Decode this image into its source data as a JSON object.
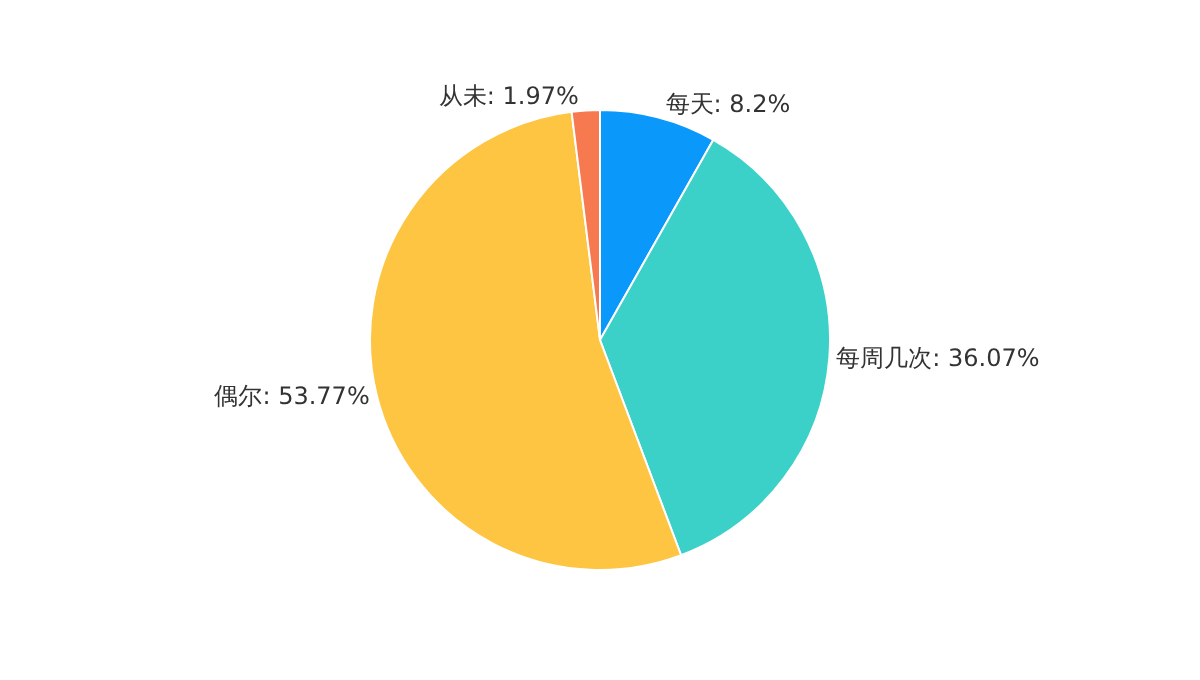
{
  "chart_data": {
    "type": "pie",
    "categories": [
      "每天",
      "每周几次",
      "偶尔",
      "从未"
    ],
    "values": [
      8.2,
      36.07,
      53.77,
      1.97
    ],
    "value_labels": [
      "8.2%",
      "36.07%",
      "53.77%",
      "1.97%"
    ],
    "colors": [
      "#0a98fb",
      "#3bd1c8",
      "#fdc542",
      "#f6794f"
    ],
    "legend": false
  }
}
